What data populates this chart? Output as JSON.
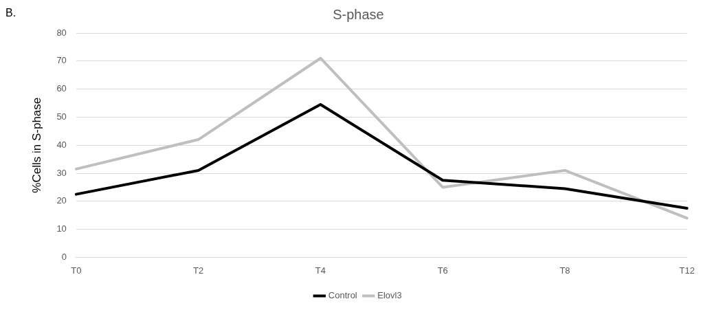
{
  "chart_data": {
    "type": "line",
    "title": "S-phase",
    "ylabel": "%Cells in S-phase",
    "annotations": [
      "B."
    ],
    "categories": [
      "T0",
      "T2",
      "T4",
      "T6",
      "T8",
      "T12"
    ],
    "series": [
      {
        "name": "Control",
        "color": "#000000",
        "values": [
          22.5,
          31,
          54.5,
          27.5,
          24.5,
          17.5
        ]
      },
      {
        "name": "Elovl3",
        "color": "#bfbfbf",
        "values": [
          31.5,
          42,
          71,
          25,
          31,
          14
        ]
      }
    ],
    "ylim": [
      0,
      80
    ],
    "yticks": [
      0,
      10,
      20,
      30,
      40,
      50,
      60,
      70,
      80
    ],
    "grid": "y",
    "legend": "bottom",
    "marker": "none",
    "line_style": "solid"
  }
}
